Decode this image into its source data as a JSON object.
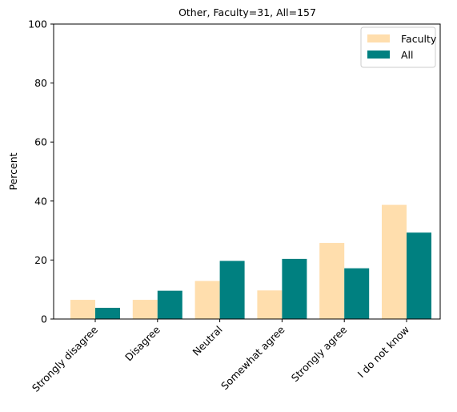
{
  "chart_data": {
    "type": "bar",
    "title": "Other, Faculty=31, All=157",
    "xlabel": "",
    "ylabel": "Percent",
    "ylim": [
      0,
      100
    ],
    "yticks": [
      0,
      20,
      40,
      60,
      80,
      100
    ],
    "grid": false,
    "legend_position": "top-right",
    "categories": [
      "Strongly disagree",
      "Disagree",
      "Neutral",
      "Somewhat agree",
      "Strongly agree",
      "I do not know"
    ],
    "series": [
      {
        "name": "Faculty",
        "color": "#ffdead",
        "values": [
          6.5,
          6.5,
          12.9,
          9.7,
          25.8,
          38.7
        ]
      },
      {
        "name": "All",
        "color": "#008080",
        "values": [
          3.8,
          9.6,
          19.7,
          20.4,
          17.2,
          29.3
        ]
      }
    ]
  }
}
